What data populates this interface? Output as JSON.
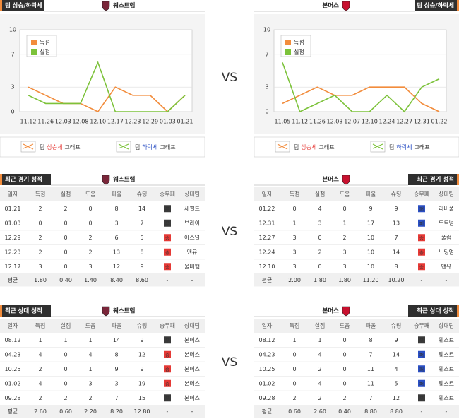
{
  "chart_data": [
    {
      "type": "line",
      "title": "팀 상승/하락세",
      "team": "웨스트햄",
      "categories": [
        "11.12",
        "11.26",
        "12.03",
        "12.08",
        "12.10",
        "12.17",
        "12.23",
        "12.29",
        "01.03",
        "01.21"
      ],
      "series": [
        {
          "name": "득점",
          "color": "#f28c3c",
          "values": [
            3,
            2,
            1,
            1,
            0,
            3,
            2,
            2,
            0,
            2
          ]
        },
        {
          "name": "실점",
          "color": "#7cc23a",
          "values": [
            2,
            1,
            1,
            1,
            6,
            0,
            0,
            0,
            0,
            2
          ]
        }
      ],
      "ylim": [
        0,
        10
      ],
      "yticks": [
        0,
        3,
        7,
        10
      ],
      "grid": true,
      "footer_up": [
        "팀",
        "상승세",
        "그래프"
      ],
      "footer_down": [
        "팀",
        "하락세",
        "그래프"
      ]
    },
    {
      "type": "line",
      "title": "팀 상승/하락세",
      "team": "본머스",
      "categories": [
        "11.05",
        "11.12",
        "11.26",
        "12.03",
        "12.07",
        "12.10",
        "12.24",
        "12.27",
        "12.31",
        "01.22"
      ],
      "series": [
        {
          "name": "득점",
          "color": "#f28c3c",
          "values": [
            1,
            2,
            3,
            2,
            2,
            3,
            3,
            3,
            1,
            0
          ]
        },
        {
          "name": "실점",
          "color": "#7cc23a",
          "values": [
            6,
            0,
            1,
            2,
            0,
            0,
            2,
            0,
            3,
            4
          ]
        }
      ],
      "ylim": [
        0,
        10
      ],
      "yticks": [
        0,
        3,
        7,
        10
      ],
      "grid": true,
      "footer_up": [
        "팀",
        "상승세",
        "그래프"
      ],
      "footer_down": [
        "팀",
        "하락세",
        "그래프"
      ]
    }
  ],
  "vs": [
    "VS",
    "VS",
    "VS"
  ],
  "tables": [
    {
      "title": "최근 경기 성적",
      "team": "웨스트햄",
      "columns": [
        "일자",
        "득점",
        "실점",
        "도움",
        "파울",
        "슈팅",
        "승무패",
        "상대팀"
      ],
      "rows": [
        [
          "01.21",
          "2",
          "2",
          "0",
          "8",
          "14",
          "무",
          "세필드"
        ],
        [
          "01.03",
          "0",
          "0",
          "0",
          "3",
          "7",
          "무",
          "브라이"
        ],
        [
          "12.29",
          "2",
          "0",
          "2",
          "6",
          "5",
          "승",
          "아스널"
        ],
        [
          "12.23",
          "2",
          "0",
          "2",
          "13",
          "8",
          "승",
          "맨유"
        ],
        [
          "12.17",
          "3",
          "0",
          "3",
          "12",
          "9",
          "승",
          "울버햄"
        ]
      ],
      "average": [
        "평균",
        "1.80",
        "0.40",
        "1.40",
        "8.40",
        "8.60",
        "-",
        "-"
      ]
    },
    {
      "title": "최근 경기 성적",
      "team": "본머스",
      "columns": [
        "일자",
        "득점",
        "실점",
        "도움",
        "파울",
        "슈팅",
        "승무패",
        "상대팀"
      ],
      "rows": [
        [
          "01.22",
          "0",
          "4",
          "0",
          "9",
          "9",
          "패",
          "리버풀"
        ],
        [
          "12.31",
          "1",
          "3",
          "1",
          "17",
          "13",
          "패",
          "토트넘"
        ],
        [
          "12.27",
          "3",
          "0",
          "2",
          "10",
          "7",
          "승",
          "풀럼"
        ],
        [
          "12.24",
          "3",
          "2",
          "3",
          "10",
          "14",
          "승",
          "노팅엄"
        ],
        [
          "12.10",
          "3",
          "0",
          "3",
          "10",
          "8",
          "승",
          "맨유"
        ]
      ],
      "average": [
        "평균",
        "2.00",
        "1.80",
        "1.80",
        "11.20",
        "10.20",
        "-",
        "-"
      ]
    },
    {
      "title": "최근 상대 성적",
      "team": "웨스트햄",
      "columns": [
        "일자",
        "득점",
        "실점",
        "도움",
        "파울",
        "슈팅",
        "승무패",
        "상대팀"
      ],
      "rows": [
        [
          "08.12",
          "1",
          "1",
          "1",
          "14",
          "9",
          "무",
          "본머스"
        ],
        [
          "04.23",
          "4",
          "0",
          "4",
          "8",
          "12",
          "승",
          "본머스"
        ],
        [
          "10.25",
          "2",
          "0",
          "1",
          "9",
          "9",
          "승",
          "본머스"
        ],
        [
          "01.02",
          "4",
          "0",
          "3",
          "3",
          "19",
          "승",
          "본머스"
        ],
        [
          "09.28",
          "2",
          "2",
          "2",
          "7",
          "15",
          "무",
          "본머스"
        ]
      ],
      "average": [
        "평균",
        "2.60",
        "0.60",
        "2.20",
        "8.20",
        "12.80",
        "-",
        "-"
      ]
    },
    {
      "title": "최근 상대 성적",
      "team": "본머스",
      "columns": [
        "일자",
        "득점",
        "실점",
        "도움",
        "파울",
        "슈팅",
        "승무패",
        "상대팀"
      ],
      "rows": [
        [
          "08.12",
          "1",
          "1",
          "0",
          "8",
          "9",
          "무",
          "웨스트"
        ],
        [
          "04.23",
          "0",
          "4",
          "0",
          "7",
          "14",
          "패",
          "웨스트"
        ],
        [
          "10.25",
          "0",
          "2",
          "0",
          "11",
          "4",
          "패",
          "웨스트"
        ],
        [
          "01.02",
          "0",
          "4",
          "0",
          "11",
          "5",
          "패",
          "웨스트"
        ],
        [
          "09.28",
          "2",
          "2",
          "2",
          "7",
          "12",
          "무",
          "웨스트"
        ]
      ],
      "average": [
        "평균",
        "0.60",
        "2.60",
        "0.40",
        "8.80",
        "8.80",
        "-",
        "-"
      ]
    }
  ]
}
